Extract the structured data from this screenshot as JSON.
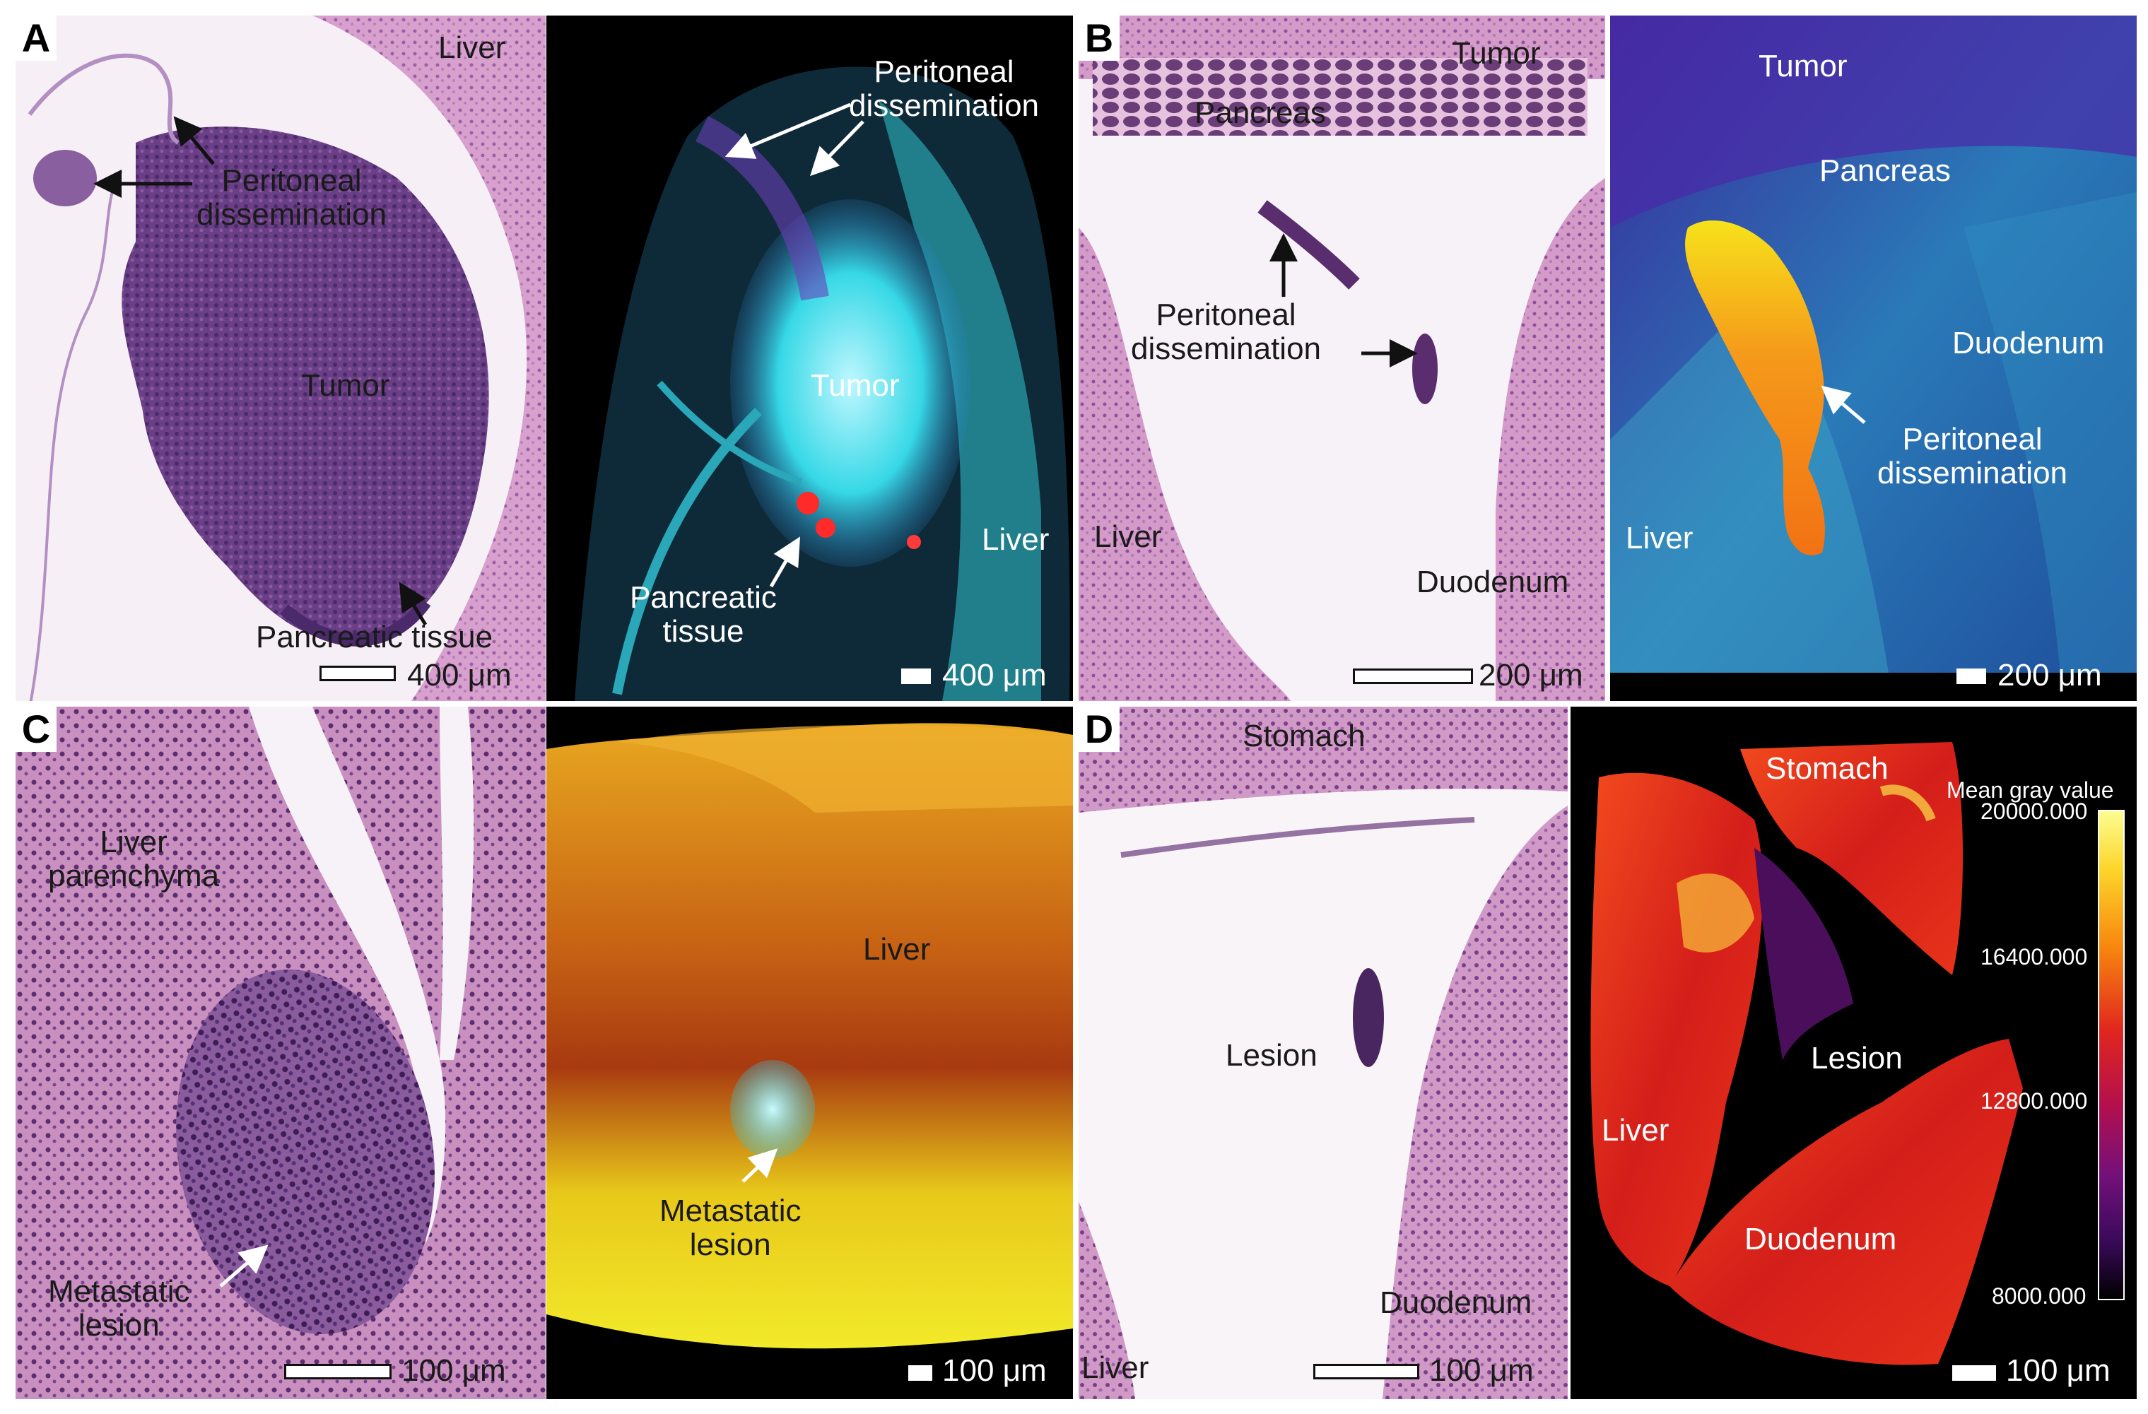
{
  "panels": {
    "A": {
      "letter": "A",
      "he": {
        "liver": "Liver",
        "peritoneal_line1": "Peritoneal",
        "peritoneal_line2": "dissemination",
        "tumor": "Tumor",
        "pancreatic_tissue": "Pancreatic tissue",
        "scale": "400 μm"
      },
      "render": {
        "peritoneal_line1": "Peritoneal",
        "peritoneal_line2": "dissemination",
        "tumor": "Tumor",
        "liver": "Liver",
        "pancreatic_line1": "Pancreatic",
        "pancreatic_line2": "tissue",
        "scale": "400 μm"
      }
    },
    "B": {
      "letter": "B",
      "he": {
        "tumor": "Tumor",
        "pancreas": "Pancreas",
        "peritoneal_line1": "Peritoneal",
        "peritoneal_line2": "dissemination",
        "liver": "Liver",
        "duodenum": "Duodenum",
        "scale": "200 μm"
      },
      "render": {
        "tumor": "Tumor",
        "pancreas": "Pancreas",
        "duodenum": "Duodenum",
        "peritoneal_line1": "Peritoneal",
        "peritoneal_line2": "dissemination",
        "liver": "Liver",
        "scale": "200 μm"
      }
    },
    "C": {
      "letter": "C",
      "he": {
        "liver_line1": "Liver",
        "liver_line2": "parenchyma",
        "metastatic_line1": "Metastatic",
        "metastatic_line2": "lesion",
        "scale": "100 μm"
      },
      "render": {
        "liver": "Liver",
        "metastatic_line1": "Metastatic",
        "metastatic_line2": "lesion",
        "scale": "100 μm"
      }
    },
    "D": {
      "letter": "D",
      "he": {
        "stomach": "Stomach",
        "lesion": "Lesion",
        "duodenum": "Duodenum",
        "liver": "Liver",
        "scale": "100 μm"
      },
      "render": {
        "stomach": "Stomach",
        "lesion": "Lesion",
        "liver": "Liver",
        "duodenum": "Duodenum",
        "scale": "100 μm",
        "colorbar_title": "Mean gray value",
        "colorbar_ticks": [
          "20000.000",
          "16400.000",
          "12800.000",
          "8000.000"
        ]
      }
    }
  },
  "colors": {
    "he_pink": "#e3b3d6",
    "he_purple": "#5e3a7a",
    "cyan": "#2ee6e0",
    "orange": "#f07a10",
    "yellow": "#f2e21a",
    "red": "#e82a14",
    "black": "#000000"
  }
}
